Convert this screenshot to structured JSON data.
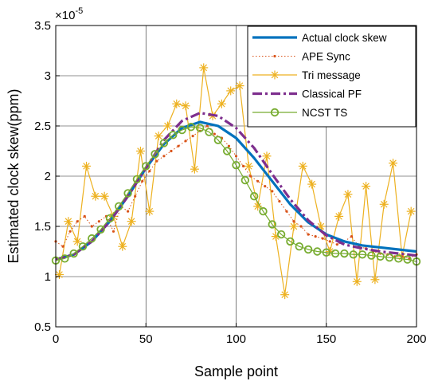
{
  "chart_data": {
    "type": "line",
    "xlabel": "Sample point",
    "ylabel": "Estimated clock skew(ppm)",
    "xlim": [
      0,
      200
    ],
    "ylim": [
      0.5,
      3.5
    ],
    "xticks": [
      0,
      50,
      100,
      150,
      200
    ],
    "yticks": [
      0.5,
      1,
      1.5,
      2,
      2.5,
      3,
      3.5
    ],
    "ytick_labels": [
      "0.5",
      "1",
      "1.5",
      "2",
      "2.5",
      "3",
      "3.5"
    ],
    "xtick_labels": [
      "0",
      "50",
      "100",
      "150",
      "200"
    ],
    "y_exponent": {
      "base": "×10",
      "power": "-5"
    },
    "grid": true,
    "legend_position": "top-right",
    "series": [
      {
        "name": "Actual clock skew",
        "color": "#0072BD",
        "style": "solid",
        "marker": "none",
        "x": [
          0,
          10,
          20,
          30,
          40,
          50,
          60,
          70,
          80,
          90,
          100,
          110,
          120,
          130,
          140,
          150,
          160,
          170,
          180,
          190,
          200
        ],
        "y": [
          1.17,
          1.22,
          1.35,
          1.55,
          1.8,
          2.08,
          2.32,
          2.48,
          2.54,
          2.5,
          2.38,
          2.18,
          1.95,
          1.72,
          1.54,
          1.42,
          1.35,
          1.31,
          1.29,
          1.27,
          1.25
        ]
      },
      {
        "name": "APE Sync",
        "color": "#D95319",
        "style": "dotted",
        "marker": "dot",
        "x": [
          0,
          4,
          8,
          12,
          16,
          20,
          24,
          28,
          32,
          36,
          40,
          44,
          48,
          52,
          56,
          60,
          64,
          68,
          72,
          76,
          80,
          84,
          88,
          92,
          96,
          100,
          104,
          108,
          112,
          116,
          120,
          124,
          128,
          132,
          136,
          140,
          144,
          148,
          152,
          156,
          160,
          164,
          168,
          172,
          176,
          180,
          184,
          188,
          192,
          196,
          200
        ],
        "y": [
          1.35,
          1.3,
          1.45,
          1.55,
          1.6,
          1.5,
          1.55,
          1.6,
          1.45,
          1.7,
          1.65,
          1.8,
          1.95,
          2.05,
          2.15,
          2.2,
          2.25,
          2.3,
          2.35,
          2.4,
          2.45,
          2.5,
          2.42,
          2.38,
          2.3,
          2.2,
          2.1,
          2.0,
          1.95,
          1.9,
          1.85,
          1.75,
          1.65,
          1.55,
          1.5,
          1.42,
          1.4,
          1.38,
          1.35,
          1.32,
          1.35,
          1.4,
          1.3,
          1.28,
          1.25,
          1.23,
          1.22,
          1.2,
          1.2,
          1.18,
          1.22
        ]
      },
      {
        "name": "Tri message",
        "color": "#EDB120",
        "style": "solid",
        "marker": "asterisk",
        "x": [
          2,
          7,
          12,
          17,
          22,
          27,
          32,
          37,
          42,
          47,
          52,
          57,
          62,
          67,
          72,
          77,
          82,
          87,
          92,
          97,
          102,
          107,
          112,
          117,
          122,
          127,
          132,
          137,
          142,
          147,
          152,
          157,
          162,
          167,
          172,
          177,
          182,
          187,
          192,
          197
        ],
        "y": [
          1.02,
          1.55,
          1.35,
          2.1,
          1.8,
          1.8,
          1.6,
          1.3,
          1.55,
          2.25,
          1.65,
          2.4,
          2.5,
          2.72,
          2.7,
          2.07,
          3.08,
          2.6,
          2.72,
          2.85,
          2.9,
          2.1,
          1.7,
          2.2,
          1.4,
          0.82,
          1.5,
          2.1,
          1.92,
          1.5,
          1.25,
          1.6,
          1.82,
          0.95,
          1.9,
          0.97,
          1.72,
          2.13,
          1.2,
          1.65
        ]
      },
      {
        "name": "Classical PF",
        "color": "#7E2F8E",
        "style": "dashdot",
        "marker": "none",
        "x": [
          0,
          10,
          20,
          30,
          40,
          50,
          60,
          70,
          80,
          90,
          100,
          110,
          120,
          130,
          140,
          150,
          160,
          170,
          180,
          190,
          200
        ],
        "y": [
          1.17,
          1.22,
          1.35,
          1.55,
          1.8,
          2.08,
          2.36,
          2.55,
          2.63,
          2.6,
          2.48,
          2.28,
          2.02,
          1.77,
          1.56,
          1.41,
          1.32,
          1.28,
          1.25,
          1.23,
          1.21
        ]
      },
      {
        "name": "NCST TS",
        "color": "#77AC30",
        "style": "solid",
        "marker": "circle",
        "x": [
          0,
          5,
          10,
          15,
          20,
          25,
          30,
          35,
          40,
          45,
          50,
          55,
          60,
          65,
          70,
          75,
          80,
          85,
          90,
          95,
          100,
          105,
          110,
          115,
          120,
          125,
          130,
          135,
          140,
          145,
          150,
          155,
          160,
          165,
          170,
          175,
          180,
          185,
          190,
          195,
          200
        ],
        "y": [
          1.16,
          1.18,
          1.23,
          1.3,
          1.38,
          1.47,
          1.58,
          1.7,
          1.83,
          1.97,
          2.1,
          2.22,
          2.33,
          2.41,
          2.46,
          2.49,
          2.48,
          2.44,
          2.36,
          2.25,
          2.11,
          1.96,
          1.8,
          1.65,
          1.52,
          1.42,
          1.35,
          1.3,
          1.27,
          1.25,
          1.24,
          1.23,
          1.23,
          1.22,
          1.22,
          1.21,
          1.2,
          1.19,
          1.18,
          1.17,
          1.15
        ]
      }
    ]
  }
}
